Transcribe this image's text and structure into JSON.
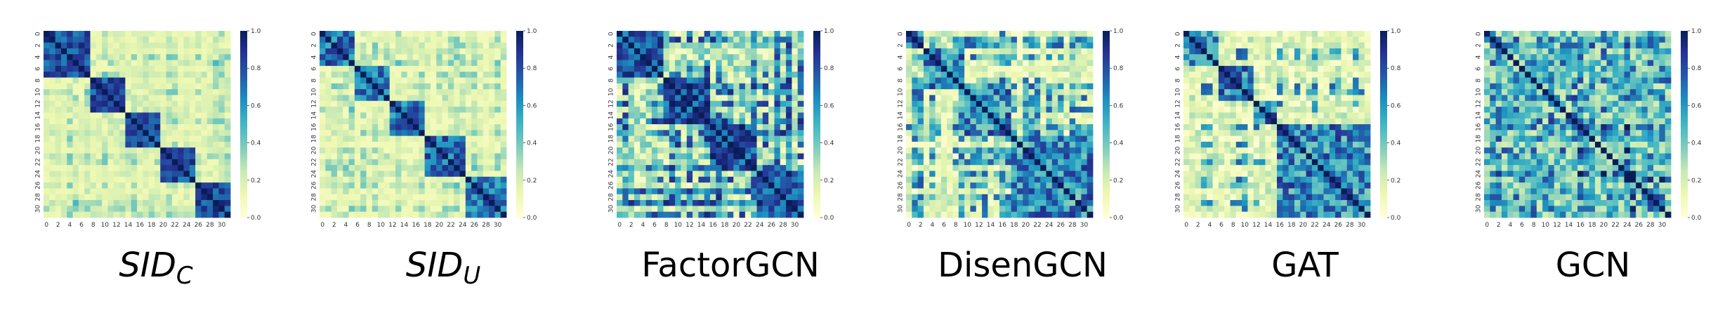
{
  "chart_data": [
    {
      "type": "heatmap",
      "title": "SID",
      "title_subscript": "C",
      "title_italic": true,
      "seed": 11,
      "blocks": [
        [
          0,
          8
        ],
        [
          8,
          14
        ],
        [
          14,
          20
        ],
        [
          20,
          26
        ],
        [
          26,
          32
        ]
      ],
      "style": "blocky"
    },
    {
      "type": "heatmap",
      "title": "SID",
      "title_subscript": "U",
      "title_italic": true,
      "seed": 23,
      "blocks": [
        [
          0,
          6
        ],
        [
          6,
          12
        ],
        [
          12,
          18
        ],
        [
          18,
          25
        ],
        [
          25,
          32
        ]
      ],
      "style": "soft"
    },
    {
      "type": "heatmap",
      "title": "FactorGCN",
      "title_subscript": "",
      "title_italic": false,
      "seed": 37,
      "blocks": [
        [
          0,
          8
        ],
        [
          8,
          16
        ],
        [
          16,
          24
        ],
        [
          24,
          32
        ]
      ],
      "style": "dense"
    },
    {
      "type": "heatmap",
      "title": "DisenGCN",
      "title_subscript": "",
      "title_italic": false,
      "seed": 41,
      "blocks": [
        [
          0,
          3
        ],
        [
          3,
          10
        ],
        [
          10,
          18
        ],
        [
          18,
          32
        ]
      ],
      "style": "sparse"
    },
    {
      "type": "heatmap",
      "title": "GAT",
      "title_subscript": "",
      "title_italic": false,
      "seed": 53,
      "blocks": [
        [
          0,
          6
        ],
        [
          6,
          12
        ],
        [
          12,
          16
        ],
        [
          16,
          32
        ]
      ],
      "style": "sparse"
    },
    {
      "type": "heatmap",
      "title": "GCN",
      "title_subscript": "",
      "title_italic": false,
      "seed": 67,
      "blocks": [
        [
          0,
          32
        ]
      ],
      "style": "uniform"
    }
  ],
  "shared": {
    "matrix_size": 32,
    "x_tick_labels": [
      "0",
      "2",
      "4",
      "6",
      "8",
      "10",
      "12",
      "14",
      "16",
      "18",
      "20",
      "22",
      "24",
      "26",
      "28",
      "30"
    ],
    "y_tick_labels": [
      "0",
      "2",
      "4",
      "6",
      "8",
      "10",
      "12",
      "14",
      "16",
      "18",
      "20",
      "22",
      "24",
      "26",
      "28",
      "30"
    ],
    "colorbar_ticks": [
      "0.0",
      "0.2",
      "0.4",
      "0.6",
      "0.8",
      "1.0"
    ],
    "value_range": [
      0,
      1
    ],
    "colormap": "YlGnBu",
    "colormap_stops": [
      "#ffffd9",
      "#edf8b1",
      "#c7e9b4",
      "#7fcdbb",
      "#41b6c4",
      "#1d91c0",
      "#225ea8",
      "#253494",
      "#081d58"
    ]
  }
}
